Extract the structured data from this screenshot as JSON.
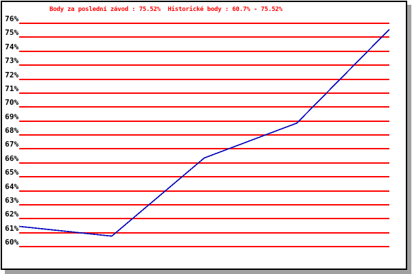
{
  "chart_data": {
    "type": "line",
    "title": "Body za poslední závod : 75.52%  Historické body : 60.7% - 75.52%",
    "title_parts": {
      "last_race_label": "Body za poslední závod",
      "last_race_value": "75.52%",
      "historical_label": "Historické body",
      "historical_range": "60.7% - 75.52%"
    },
    "series": [
      {
        "name": "points-history",
        "values": [
          61.4,
          60.7,
          66.3,
          68.8,
          75.52
        ]
      }
    ],
    "n_points": 5,
    "ylim": [
      60,
      76
    ],
    "y_tick_step": 1,
    "y_ticks": [
      "76%",
      "75%",
      "74%",
      "73%",
      "72%",
      "71%",
      "70%",
      "69%",
      "68%",
      "67%",
      "66%",
      "65%",
      "64%",
      "63%",
      "62%",
      "61%",
      "60%"
    ],
    "xlabel": "",
    "ylabel": "",
    "grid": "horizontal",
    "legend": "none",
    "colors": {
      "line": "#0000bb",
      "grid": "#ff0000",
      "title": "#ff0000",
      "ticks": "#000000",
      "background": "#ffffff",
      "frame_border": "#000000",
      "frame_shadow": "#a0a0a0"
    }
  }
}
